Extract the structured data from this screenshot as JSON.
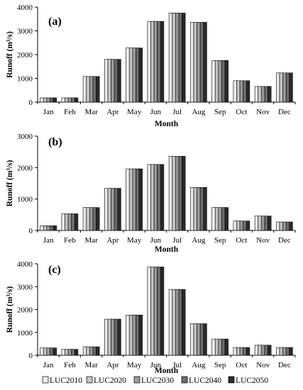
{
  "legend": [
    "LUC2010",
    "LUC2020",
    "LUC2030",
    "LUC2040",
    "LUC2050"
  ],
  "series_colors": [
    "#ececec",
    "#c4c4c4",
    "#9a9a9a",
    "#6c6c6c",
    "#2a2a2a"
  ],
  "chart_data": [
    {
      "type": "bar",
      "panel_label": "(a)",
      "xlabel": "Month",
      "ylabel": "Runoff (m³/s)",
      "ylim": [
        0,
        4000
      ],
      "yticks": [
        0,
        1000,
        2000,
        3000,
        4000
      ],
      "grid": false,
      "categories": [
        "Jan",
        "Feb",
        "Mar",
        "Apr",
        "May",
        "Jun",
        "Jul",
        "Aug",
        "Sep",
        "Oct",
        "Nov",
        "Dec"
      ],
      "series": [
        {
          "name": "LUC2010",
          "values": [
            180,
            180,
            1080,
            1800,
            2280,
            3400,
            3750,
            3360,
            1750,
            900,
            660,
            1230
          ]
        },
        {
          "name": "LUC2020",
          "values": [
            180,
            180,
            1080,
            1800,
            2280,
            3400,
            3750,
            3360,
            1750,
            900,
            660,
            1230
          ]
        },
        {
          "name": "LUC2030",
          "values": [
            180,
            180,
            1080,
            1800,
            2280,
            3400,
            3750,
            3360,
            1750,
            900,
            660,
            1230
          ]
        },
        {
          "name": "LUC2040",
          "values": [
            180,
            180,
            1080,
            1800,
            2280,
            3400,
            3750,
            3360,
            1750,
            900,
            660,
            1230
          ]
        },
        {
          "name": "LUC2050",
          "values": [
            180,
            180,
            1080,
            1800,
            2280,
            3400,
            3750,
            3360,
            1750,
            900,
            660,
            1230
          ]
        }
      ]
    },
    {
      "type": "bar",
      "panel_label": "(b)",
      "xlabel": "Month",
      "ylabel": "Runoff (m³/s)",
      "ylim": [
        0,
        3000
      ],
      "yticks": [
        0,
        1000,
        2000,
        3000
      ],
      "grid": false,
      "categories": [
        "Jan",
        "Feb",
        "Mar",
        "Apr",
        "May",
        "Jun",
        "Jul",
        "Aug",
        "Sep",
        "Oct",
        "Nov",
        "Dec"
      ],
      "series": [
        {
          "name": "LUC2010",
          "values": [
            150,
            530,
            730,
            1340,
            1960,
            2100,
            2360,
            1370,
            730,
            300,
            460,
            270
          ]
        },
        {
          "name": "LUC2020",
          "values": [
            150,
            530,
            730,
            1340,
            1960,
            2100,
            2360,
            1370,
            730,
            300,
            460,
            270
          ]
        },
        {
          "name": "LUC2030",
          "values": [
            150,
            530,
            730,
            1340,
            1960,
            2100,
            2360,
            1370,
            730,
            300,
            460,
            270
          ]
        },
        {
          "name": "LUC2040",
          "values": [
            150,
            530,
            730,
            1340,
            1960,
            2100,
            2360,
            1370,
            730,
            300,
            460,
            270
          ]
        },
        {
          "name": "LUC2050",
          "values": [
            150,
            530,
            730,
            1340,
            1960,
            2100,
            2360,
            1370,
            730,
            300,
            460,
            270
          ]
        }
      ]
    },
    {
      "type": "bar",
      "panel_label": "(c)",
      "xlabel": "Month",
      "ylabel": "Runoff (m³/s)",
      "ylim": [
        0,
        4000
      ],
      "yticks": [
        0,
        1000,
        2000,
        3000,
        4000
      ],
      "grid": false,
      "categories": [
        "Jan",
        "Feb",
        "Mar",
        "Apr",
        "May",
        "Jun",
        "Jul",
        "Aug",
        "Sep",
        "Oct",
        "Nov",
        "Dec"
      ],
      "series": [
        {
          "name": "LUC2010",
          "values": [
            320,
            260,
            370,
            1580,
            1760,
            3860,
            2880,
            1380,
            710,
            340,
            440,
            340
          ]
        },
        {
          "name": "LUC2020",
          "values": [
            320,
            260,
            370,
            1580,
            1760,
            3860,
            2880,
            1380,
            710,
            340,
            440,
            340
          ]
        },
        {
          "name": "LUC2030",
          "values": [
            320,
            260,
            370,
            1580,
            1760,
            3860,
            2880,
            1380,
            710,
            340,
            440,
            340
          ]
        },
        {
          "name": "LUC2040",
          "values": [
            320,
            260,
            370,
            1580,
            1760,
            3860,
            2880,
            1380,
            710,
            340,
            440,
            340
          ]
        },
        {
          "name": "LUC2050",
          "values": [
            320,
            260,
            370,
            1580,
            1760,
            3860,
            2880,
            1380,
            710,
            340,
            440,
            340
          ]
        }
      ]
    }
  ]
}
